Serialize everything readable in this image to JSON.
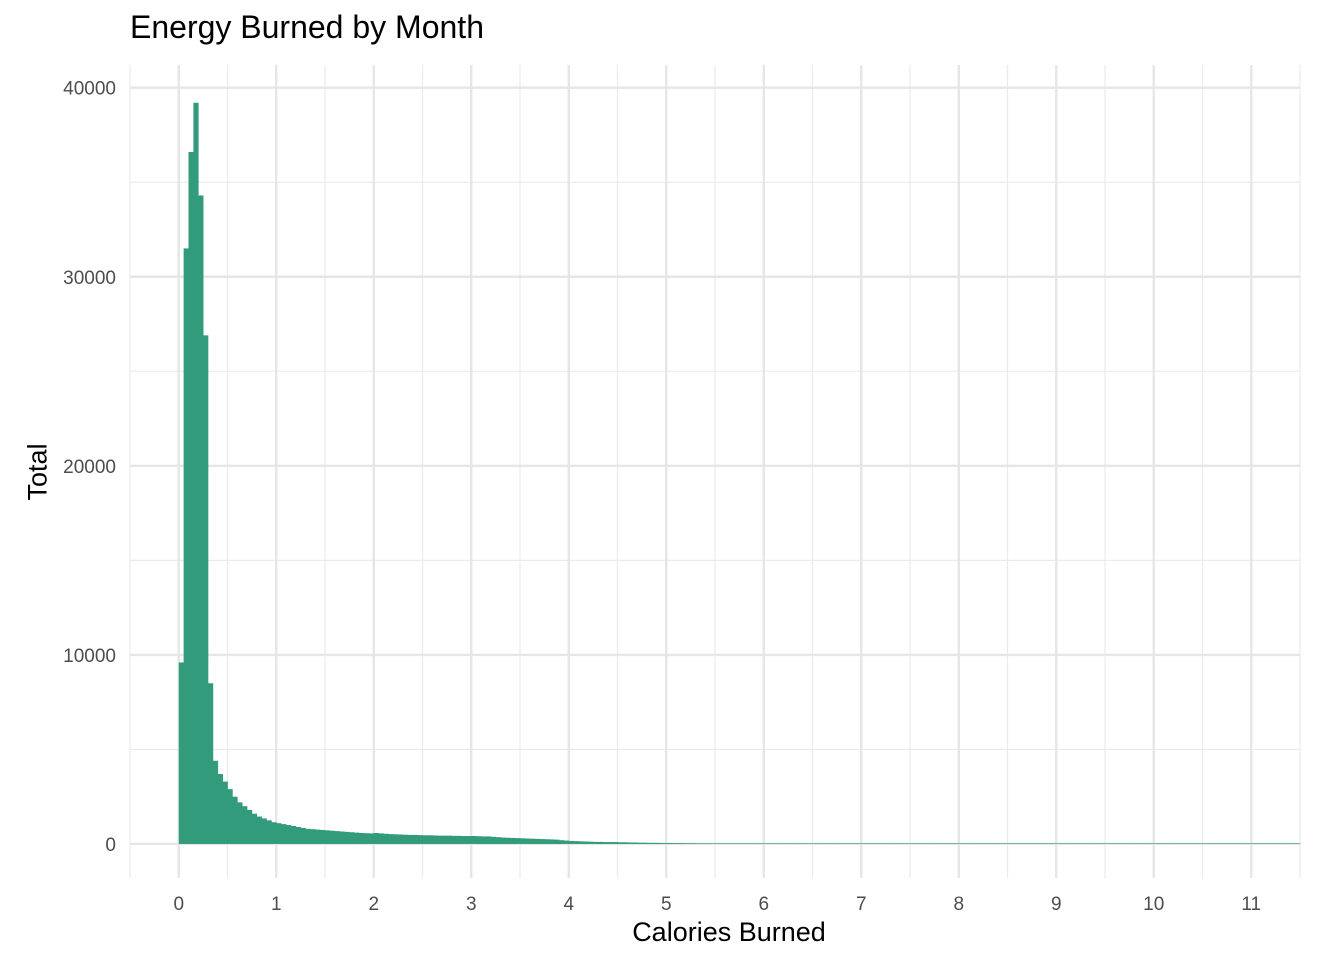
{
  "chart_data": {
    "type": "bar",
    "title": "Energy Burned by Month",
    "xlabel": "Calories Burned",
    "ylabel": "Total",
    "xlim": [
      -0.5,
      11.5
    ],
    "ylim": [
      -1800,
      41200
    ],
    "x_ticks": [
      0,
      1,
      2,
      3,
      4,
      5,
      6,
      7,
      8,
      9,
      10,
      11
    ],
    "x_tick_labels": [
      "0",
      "1",
      "2",
      "3",
      "4",
      "5",
      "6",
      "7",
      "8",
      "9",
      "10",
      "11"
    ],
    "y_ticks": [
      0,
      10000,
      20000,
      30000,
      40000
    ],
    "y_tick_labels": [
      "0",
      "10000",
      "20000",
      "30000",
      "40000"
    ],
    "grid": true,
    "bin_width": 0.05,
    "bin_start": 0,
    "color": "#329b7c",
    "values": [
      9600,
      31500,
      36600,
      39200,
      34300,
      26900,
      8500,
      4400,
      3700,
      3300,
      2900,
      2500,
      2200,
      2000,
      1800,
      1600,
      1450,
      1350,
      1250,
      1150,
      1100,
      1050,
      1000,
      950,
      900,
      850,
      800,
      780,
      760,
      740,
      720,
      700,
      680,
      660,
      640,
      620,
      600,
      580,
      570,
      560,
      580,
      560,
      540,
      520,
      510,
      500,
      490,
      480,
      480,
      470,
      460,
      460,
      450,
      440,
      440,
      440,
      430,
      430,
      420,
      420,
      420,
      410,
      400,
      400,
      380,
      360,
      340,
      330,
      320,
      310,
      300,
      290,
      280,
      270,
      260,
      250,
      240,
      230,
      200,
      180,
      160,
      150,
      140,
      130,
      120,
      110,
      110,
      100,
      100,
      100,
      90,
      90,
      80,
      80,
      70,
      70,
      60,
      60,
      55,
      50,
      48,
      46,
      44,
      42,
      40,
      38,
      36,
      34,
      32,
      30,
      28,
      27,
      26,
      25,
      24,
      23,
      22,
      21,
      20,
      19,
      18,
      17,
      16,
      15,
      14,
      13,
      12,
      11,
      10,
      10,
      10,
      10,
      9,
      9,
      9,
      8,
      8,
      8,
      7,
      7,
      7,
      6,
      6,
      6,
      6,
      5,
      5,
      5,
      5,
      5,
      5,
      4,
      4,
      4,
      4,
      4,
      4,
      4,
      3,
      3,
      3,
      3,
      3,
      3,
      3,
      3,
      3,
      3,
      3,
      3,
      2,
      2,
      2,
      2,
      2,
      2,
      2,
      2,
      2,
      2,
      2,
      2,
      2,
      2,
      2,
      2,
      2,
      2,
      2,
      2,
      2,
      2,
      2,
      2,
      2,
      2,
      2,
      2,
      2,
      2,
      2,
      2,
      2,
      2,
      2,
      2,
      2,
      2,
      2,
      2,
      2,
      2,
      2,
      2,
      2,
      2,
      2,
      2,
      2,
      2,
      2,
      2,
      2,
      2,
      2,
      2,
      2,
      2,
      2,
      2
    ]
  }
}
